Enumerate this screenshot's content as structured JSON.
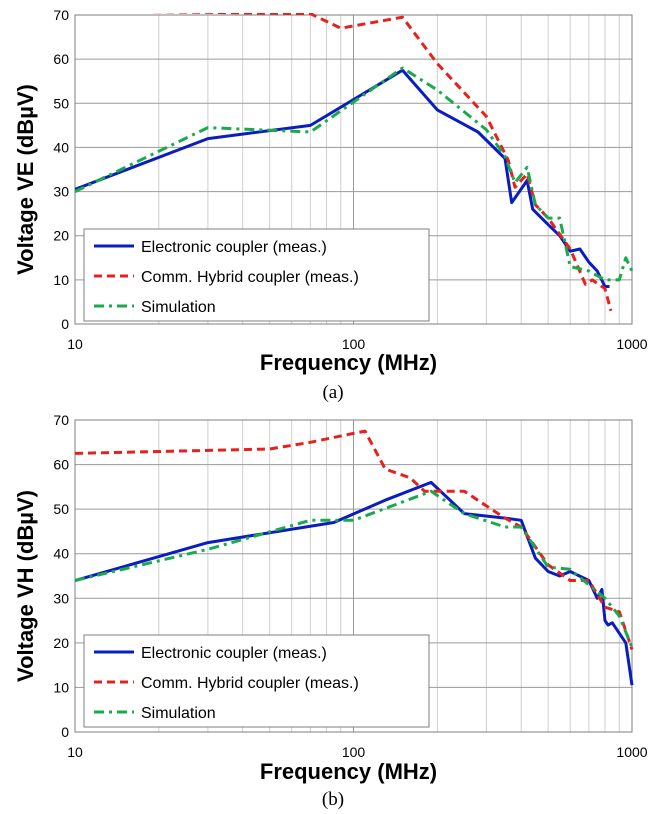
{
  "chart_data": [
    {
      "type": "line",
      "caption": "(a)",
      "xlabel": "Frequency (MHz)",
      "ylabel": "Voltage VE (dBµV)",
      "xscale": "log",
      "xlim": [
        10,
        1000
      ],
      "ylim": [
        0,
        70
      ],
      "xticks": [
        "10",
        "100",
        "1000"
      ],
      "yticks": [
        "0",
        "10",
        "20",
        "30",
        "40",
        "50",
        "60",
        "70"
      ],
      "grid": true,
      "legend_position": "bottom-left",
      "series": [
        {
          "name": "Electronic coupler (meas.)",
          "color": "#0a1ebf",
          "style": "solid",
          "points": [
            [
              10,
              30.5
            ],
            [
              30,
              42
            ],
            [
              70,
              45
            ],
            [
              150,
              57.5
            ],
            [
              200,
              48.5
            ],
            [
              280,
              43.5
            ],
            [
              350,
              37.5
            ],
            [
              370,
              27.5
            ],
            [
              420,
              32.5
            ],
            [
              440,
              26
            ],
            [
              500,
              22.5
            ],
            [
              550,
              20
            ],
            [
              600,
              16.5
            ],
            [
              650,
              17
            ],
            [
              700,
              14
            ],
            [
              750,
              12
            ],
            [
              800,
              8.5
            ],
            [
              830,
              8.5
            ]
          ]
        },
        {
          "name": "Comm. Hybrid coupler (meas.)",
          "color": "#e8201c",
          "style": "dashed",
          "points": [
            [
              10,
              71
            ],
            [
              70,
              70.3
            ],
            [
              90,
              67
            ],
            [
              150,
              69.5
            ],
            [
              200,
              59
            ],
            [
              300,
              47
            ],
            [
              360,
              37
            ],
            [
              380,
              31
            ],
            [
              420,
              34
            ],
            [
              450,
              27
            ],
            [
              500,
              24
            ],
            [
              600,
              17
            ],
            [
              680,
              9
            ],
            [
              720,
              10
            ],
            [
              800,
              8
            ],
            [
              840,
              3
            ]
          ]
        },
        {
          "name": "Simulation",
          "color": "#1aaa4c",
          "style": "dashdot",
          "points": [
            [
              10,
              30
            ],
            [
              30,
              44.5
            ],
            [
              70,
              43.5
            ],
            [
              150,
              58
            ],
            [
              200,
              53
            ],
            [
              300,
              44
            ],
            [
              350,
              38
            ],
            [
              380,
              32
            ],
            [
              420,
              35.5
            ],
            [
              450,
              27
            ],
            [
              500,
              24
            ],
            [
              550,
              24
            ],
            [
              600,
              13
            ],
            [
              700,
              12
            ],
            [
              800,
              10
            ],
            [
              900,
              10
            ],
            [
              950,
              15
            ],
            [
              1000,
              12
            ]
          ]
        }
      ]
    },
    {
      "type": "line",
      "caption": "(b)",
      "xlabel": "Frequency (MHz)",
      "ylabel": "Voltage VH (dBµV)",
      "xscale": "log",
      "xlim": [
        10,
        1000
      ],
      "ylim": [
        0,
        70
      ],
      "xticks": [
        "10",
        "100",
        "1000"
      ],
      "yticks": [
        "0",
        "10",
        "20",
        "30",
        "40",
        "50",
        "60",
        "70"
      ],
      "grid": true,
      "legend_position": "bottom-left",
      "series": [
        {
          "name": "Electronic coupler (meas.)",
          "color": "#0a1ebf",
          "style": "solid",
          "points": [
            [
              10,
              34
            ],
            [
              30,
              42.5
            ],
            [
              85,
              47
            ],
            [
              130,
              52
            ],
            [
              190,
              56
            ],
            [
              250,
              49
            ],
            [
              350,
              48
            ],
            [
              400,
              47.5
            ],
            [
              450,
              39
            ],
            [
              500,
              36
            ],
            [
              550,
              35
            ],
            [
              600,
              36
            ],
            [
              700,
              34
            ],
            [
              750,
              30
            ],
            [
              780,
              32
            ],
            [
              800,
              25
            ],
            [
              820,
              24
            ],
            [
              850,
              24.5
            ],
            [
              950,
              20
            ],
            [
              1000,
              10.5
            ]
          ]
        },
        {
          "name": "Comm. Hybrid coupler (meas.)",
          "color": "#e8201c",
          "style": "dashed",
          "points": [
            [
              10,
              62.5
            ],
            [
              50,
              63.5
            ],
            [
              70,
              65
            ],
            [
              100,
              67
            ],
            [
              110,
              67.5
            ],
            [
              130,
              59
            ],
            [
              160,
              57
            ],
            [
              180,
              54
            ],
            [
              250,
              54
            ],
            [
              350,
              48
            ],
            [
              400,
              46
            ],
            [
              500,
              37.5
            ],
            [
              600,
              34
            ],
            [
              700,
              34
            ],
            [
              800,
              28
            ],
            [
              900,
              27
            ],
            [
              1000,
              18.5
            ]
          ]
        },
        {
          "name": "Simulation",
          "color": "#1aaa4c",
          "style": "dashdot",
          "points": [
            [
              10,
              34
            ],
            [
              30,
              41
            ],
            [
              70,
              47.5
            ],
            [
              100,
              47.5
            ],
            [
              190,
              54
            ],
            [
              250,
              49
            ],
            [
              350,
              46
            ],
            [
              400,
              46
            ],
            [
              500,
              37
            ],
            [
              600,
              36.5
            ],
            [
              700,
              33
            ],
            [
              800,
              30
            ],
            [
              850,
              28
            ],
            [
              900,
              26
            ],
            [
              1000,
              19
            ]
          ]
        }
      ]
    }
  ]
}
